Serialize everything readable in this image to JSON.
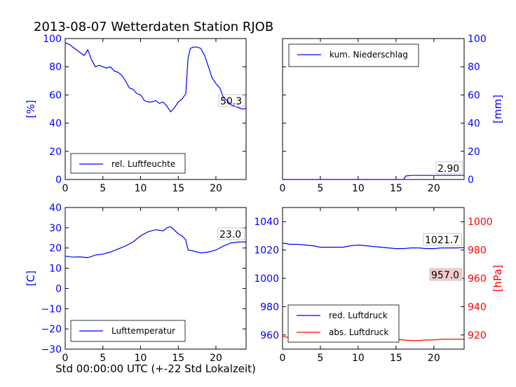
{
  "title": "2013-08-07 Wetterdaten Station RJOB",
  "xlabel": "Std 00:00:00 UTC (+-22 Std Lokalzeit)",
  "colors": {
    "blue": "#0000ff",
    "red": "#ff0000",
    "black": "#000000"
  },
  "chart_data": [
    {
      "type": "line",
      "name": "humidity",
      "ylabel": "[%]",
      "xlim": [
        0,
        24
      ],
      "ylim": [
        0,
        100
      ],
      "xticks": [
        0,
        5,
        10,
        15,
        20
      ],
      "yticks": [
        0,
        20,
        40,
        60,
        80,
        100
      ],
      "legend": "bottom-left",
      "annotation": "50.3",
      "series": [
        {
          "name": "rel. Luftfeuchte",
          "color": "#0000ff",
          "x": [
            0,
            0.5,
            1,
            1.5,
            2,
            2.5,
            3,
            3.5,
            4,
            4.5,
            5,
            5.5,
            6,
            6.5,
            7,
            7.5,
            8,
            8.5,
            9,
            9.5,
            10,
            10.5,
            11,
            11.5,
            12,
            12.5,
            13,
            13.5,
            14,
            14.5,
            15,
            15.5,
            16,
            16.3,
            16.6,
            17,
            17.5,
            18,
            18.5,
            19,
            19.5,
            20,
            20.5,
            21,
            21.5,
            22,
            22.5,
            23,
            23.5,
            24
          ],
          "y": [
            97,
            96,
            94,
            92,
            90,
            88,
            92,
            85,
            80,
            81,
            80,
            79,
            80,
            77,
            76,
            74,
            70,
            65,
            64,
            61,
            60,
            56,
            55,
            55,
            56,
            54,
            55,
            52,
            48,
            51,
            55,
            57,
            61,
            86,
            93,
            94,
            94,
            93,
            88,
            80,
            72,
            68,
            65,
            58,
            56,
            53,
            52,
            51,
            50,
            50.3
          ]
        }
      ]
    },
    {
      "type": "line",
      "name": "precipitation",
      "ylabel": "[mm]",
      "xlim": [
        0,
        24
      ],
      "ylim": [
        0,
        100
      ],
      "xticks": [
        0,
        5,
        10,
        15,
        20
      ],
      "yticks": [
        0,
        20,
        40,
        60,
        80,
        100
      ],
      "legend": "top-left",
      "annotation": "2.90",
      "series": [
        {
          "name": "kum. Niederschlag",
          "color": "#0000ff",
          "x": [
            0,
            15,
            16,
            16.3,
            17,
            20,
            24
          ],
          "y": [
            0,
            0,
            0,
            2.5,
            2.9,
            2.9,
            2.9
          ]
        }
      ]
    },
    {
      "type": "line",
      "name": "temperature",
      "ylabel": "[C]",
      "xlim": [
        0,
        24
      ],
      "ylim": [
        -30,
        40
      ],
      "xticks": [
        0,
        5,
        10,
        15,
        20
      ],
      "yticks": [
        -30,
        -20,
        -10,
        0,
        10,
        20,
        30,
        40
      ],
      "legend": "bottom-left",
      "annotation": "23.0",
      "series": [
        {
          "name": "Lufttemperatur",
          "color": "#0000ff",
          "x": [
            0,
            1,
            2,
            3,
            4,
            5,
            6,
            7,
            8,
            9,
            10,
            11,
            12,
            13,
            13.5,
            14,
            15,
            15.5,
            16,
            16.3,
            17,
            18,
            19,
            20,
            21,
            22,
            23,
            24
          ],
          "y": [
            16,
            15.5,
            15.6,
            15.2,
            16.5,
            17,
            18,
            19.5,
            21,
            23,
            26,
            28,
            29,
            28.5,
            30,
            30.5,
            27,
            26,
            24,
            19,
            18.5,
            17.5,
            18,
            19,
            21,
            22.5,
            23,
            23
          ]
        }
      ]
    },
    {
      "type": "line",
      "name": "pressure",
      "ylabel": "[hPa]",
      "xlim": [
        0,
        24
      ],
      "ylim": [
        950,
        1050
      ],
      "y2lim": [
        910,
        1010
      ],
      "xticks": [
        0,
        5,
        10,
        15,
        20
      ],
      "yticks": [
        960,
        980,
        1000,
        1020,
        1040
      ],
      "y2ticks": [
        920,
        940,
        960,
        980,
        1000
      ],
      "legend": "bottom-left",
      "annotations": [
        "1021.7",
        "957.0"
      ],
      "series": [
        {
          "name": "red. Luftdruck",
          "color": "#0000ff",
          "x": [
            0,
            1,
            2,
            3,
            4,
            5,
            6,
            7,
            8,
            9,
            10,
            11,
            12,
            13,
            14,
            15,
            16,
            17,
            18,
            19,
            20,
            21,
            22,
            23,
            24
          ],
          "y": [
            1025,
            1024,
            1024,
            1023.5,
            1023,
            1022,
            1022,
            1022,
            1022,
            1023,
            1023.5,
            1023,
            1022.5,
            1022,
            1021.5,
            1021,
            1021,
            1021.5,
            1021.5,
            1021,
            1021,
            1021.5,
            1021.5,
            1021.5,
            1021.7
          ]
        },
        {
          "name": "abs. Luftdruck",
          "color": "#ff0000",
          "x": [
            0,
            1,
            2,
            3,
            4,
            5,
            6,
            7,
            8,
            9,
            10,
            11,
            12,
            13,
            14,
            15,
            16,
            17,
            18,
            19,
            20,
            21,
            22,
            23,
            24
          ],
          "y": [
            959,
            958,
            958,
            957.5,
            957,
            956,
            956,
            956.5,
            957,
            958.5,
            959,
            959,
            958,
            957.5,
            957.5,
            957,
            956.5,
            956,
            956,
            956.5,
            956.5,
            957,
            957,
            957,
            957
          ]
        }
      ]
    }
  ]
}
